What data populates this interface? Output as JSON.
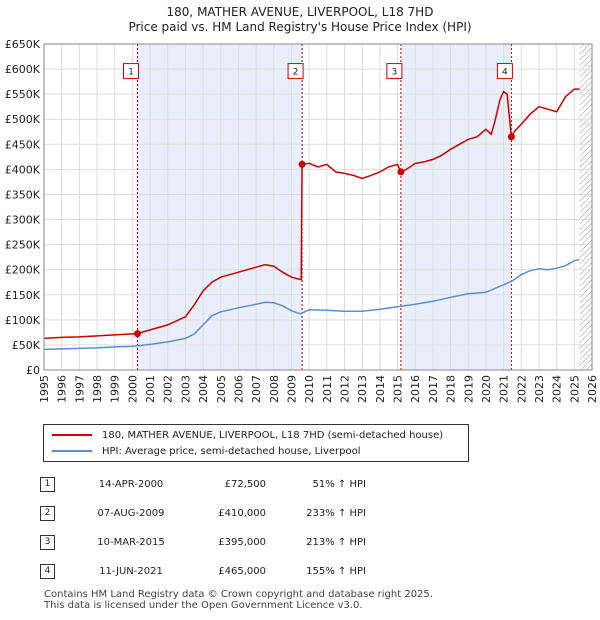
{
  "title_line1": "180, MATHER AVENUE, LIVERPOOL, L18 7HD",
  "title_line2": "Price paid vs. HM Land Registry's House Price Index (HPI)",
  "chart_data": {
    "type": "line",
    "title": "180, MATHER AVENUE, LIVERPOOL, L18 7HD - Price paid vs. HM Land Registry's House Price Index (HPI)",
    "xlabel": "",
    "ylabel": "",
    "xlim": [
      1995,
      2026
    ],
    "ylim": [
      0,
      650000
    ],
    "grid": true,
    "x_ticks": [
      "1995",
      "1996",
      "1997",
      "1998",
      "1999",
      "2000",
      "2001",
      "2002",
      "2003",
      "2004",
      "2005",
      "2006",
      "2007",
      "2008",
      "2009",
      "2010",
      "2011",
      "2012",
      "2013",
      "2014",
      "2015",
      "2016",
      "2017",
      "2018",
      "2019",
      "2020",
      "2021",
      "2022",
      "2023",
      "2024",
      "2025",
      "2026"
    ],
    "y_ticks": [
      {
        "value": 0,
        "label": "£0"
      },
      {
        "value": 50000,
        "label": "£50K"
      },
      {
        "value": 100000,
        "label": "£100K"
      },
      {
        "value": 150000,
        "label": "£150K"
      },
      {
        "value": 200000,
        "label": "£200K"
      },
      {
        "value": 250000,
        "label": "£250K"
      },
      {
        "value": 300000,
        "label": "£300K"
      },
      {
        "value": 350000,
        "label": "£350K"
      },
      {
        "value": 400000,
        "label": "£400K"
      },
      {
        "value": 450000,
        "label": "£450K"
      },
      {
        "value": 500000,
        "label": "£500K"
      },
      {
        "value": 550000,
        "label": "£550K"
      },
      {
        "value": 600000,
        "label": "£600K"
      },
      {
        "value": 650000,
        "label": "£650K"
      }
    ],
    "series": [
      {
        "name": "180, MATHER AVENUE, LIVERPOOL, L18 7HD (semi-detached house)",
        "color": "#cc0000",
        "points": [
          [
            1995.0,
            63000
          ],
          [
            1996.0,
            65000
          ],
          [
            1997.0,
            66000
          ],
          [
            1998.0,
            68000
          ],
          [
            1999.0,
            70000
          ],
          [
            2000.0,
            72000
          ],
          [
            2000.29,
            72500
          ],
          [
            2001.0,
            80000
          ],
          [
            2002.0,
            90000
          ],
          [
            2003.0,
            106000
          ],
          [
            2003.5,
            130000
          ],
          [
            2004.0,
            158000
          ],
          [
            2004.5,
            175000
          ],
          [
            2005.0,
            185000
          ],
          [
            2006.0,
            195000
          ],
          [
            2007.0,
            205000
          ],
          [
            2007.5,
            210000
          ],
          [
            2008.0,
            207000
          ],
          [
            2008.5,
            195000
          ],
          [
            2009.0,
            185000
          ],
          [
            2009.55,
            180000
          ],
          [
            2009.6,
            410000
          ],
          [
            2010.0,
            412000
          ],
          [
            2010.5,
            405000
          ],
          [
            2011.0,
            410000
          ],
          [
            2011.5,
            395000
          ],
          [
            2012.0,
            392000
          ],
          [
            2012.5,
            388000
          ],
          [
            2013.0,
            382000
          ],
          [
            2013.5,
            388000
          ],
          [
            2014.0,
            395000
          ],
          [
            2014.5,
            405000
          ],
          [
            2015.0,
            410000
          ],
          [
            2015.19,
            395000
          ],
          [
            2015.5,
            400000
          ],
          [
            2016.0,
            412000
          ],
          [
            2016.5,
            415000
          ],
          [
            2017.0,
            420000
          ],
          [
            2017.5,
            428000
          ],
          [
            2018.0,
            440000
          ],
          [
            2018.5,
            450000
          ],
          [
            2019.0,
            460000
          ],
          [
            2019.5,
            465000
          ],
          [
            2020.0,
            480000
          ],
          [
            2020.3,
            470000
          ],
          [
            2020.5,
            495000
          ],
          [
            2020.8,
            540000
          ],
          [
            2021.0,
            555000
          ],
          [
            2021.2,
            550000
          ],
          [
            2021.44,
            465000
          ],
          [
            2021.6,
            475000
          ],
          [
            2022.0,
            490000
          ],
          [
            2022.5,
            510000
          ],
          [
            2023.0,
            525000
          ],
          [
            2023.5,
            520000
          ],
          [
            2024.0,
            515000
          ],
          [
            2024.5,
            545000
          ],
          [
            2025.0,
            560000
          ],
          [
            2025.3,
            560000
          ]
        ]
      },
      {
        "name": "HPI: Average price, semi-detached house, Liverpool",
        "color": "#5b8fd0",
        "points": [
          [
            1995.0,
            41000
          ],
          [
            1996.0,
            42000
          ],
          [
            1997.0,
            43000
          ],
          [
            1998.0,
            44000
          ],
          [
            1999.0,
            46000
          ],
          [
            2000.0,
            47000
          ],
          [
            2001.0,
            51000
          ],
          [
            2002.0,
            56000
          ],
          [
            2003.0,
            63000
          ],
          [
            2003.5,
            72000
          ],
          [
            2004.0,
            90000
          ],
          [
            2004.5,
            108000
          ],
          [
            2005.0,
            116000
          ],
          [
            2006.0,
            124000
          ],
          [
            2007.0,
            131000
          ],
          [
            2007.5,
            135000
          ],
          [
            2008.0,
            134000
          ],
          [
            2008.5,
            128000
          ],
          [
            2009.0,
            118000
          ],
          [
            2009.5,
            112000
          ],
          [
            2010.0,
            120000
          ],
          [
            2011.0,
            119000
          ],
          [
            2012.0,
            117000
          ],
          [
            2013.0,
            117000
          ],
          [
            2014.0,
            121000
          ],
          [
            2015.0,
            126000
          ],
          [
            2016.0,
            131000
          ],
          [
            2017.0,
            137000
          ],
          [
            2018.0,
            145000
          ],
          [
            2019.0,
            152000
          ],
          [
            2020.0,
            155000
          ],
          [
            2021.0,
            170000
          ],
          [
            2021.5,
            178000
          ],
          [
            2022.0,
            190000
          ],
          [
            2022.5,
            198000
          ],
          [
            2023.0,
            202000
          ],
          [
            2023.5,
            200000
          ],
          [
            2024.0,
            203000
          ],
          [
            2024.5,
            208000
          ],
          [
            2025.0,
            218000
          ],
          [
            2025.3,
            220000
          ]
        ]
      }
    ],
    "sales": [
      {
        "label": "1",
        "x": 2000.29,
        "price": 72500
      },
      {
        "label": "2",
        "x": 2009.6,
        "price": 410000
      },
      {
        "label": "3",
        "x": 2015.19,
        "price": 395000
      },
      {
        "label": "4",
        "x": 2021.44,
        "price": 465000
      }
    ],
    "marker_box_y": 595000,
    "shaded_ranges": [
      [
        2000.29,
        2009.6
      ],
      [
        2015.19,
        2021.44
      ]
    ],
    "future_hatch_from": 2025.3
  },
  "legend": {
    "property": "180, MATHER AVENUE, LIVERPOOL, L18 7HD (semi-detached house)",
    "hpi": "HPI: Average price, semi-detached house, Liverpool"
  },
  "sales_table": [
    {
      "num": "1",
      "date": "14-APR-2000",
      "price": "£72,500",
      "hpi": "51% ↑ HPI"
    },
    {
      "num": "2",
      "date": "07-AUG-2009",
      "price": "£410,000",
      "hpi": "233% ↑ HPI"
    },
    {
      "num": "3",
      "date": "10-MAR-2015",
      "price": "£395,000",
      "hpi": "213% ↑ HPI"
    },
    {
      "num": "4",
      "date": "11-JUN-2021",
      "price": "£465,000",
      "hpi": "155% ↑ HPI"
    }
  ],
  "footer": {
    "line1": "Contains HM Land Registry data © Crown copyright and database right 2025.",
    "line2": "This data is licensed under the Open Government Licence v3.0."
  },
  "colors": {
    "property": "#cc0000",
    "hpi": "#5b8fd0",
    "shade": "#e8eefa",
    "grid": "#dddddd"
  }
}
